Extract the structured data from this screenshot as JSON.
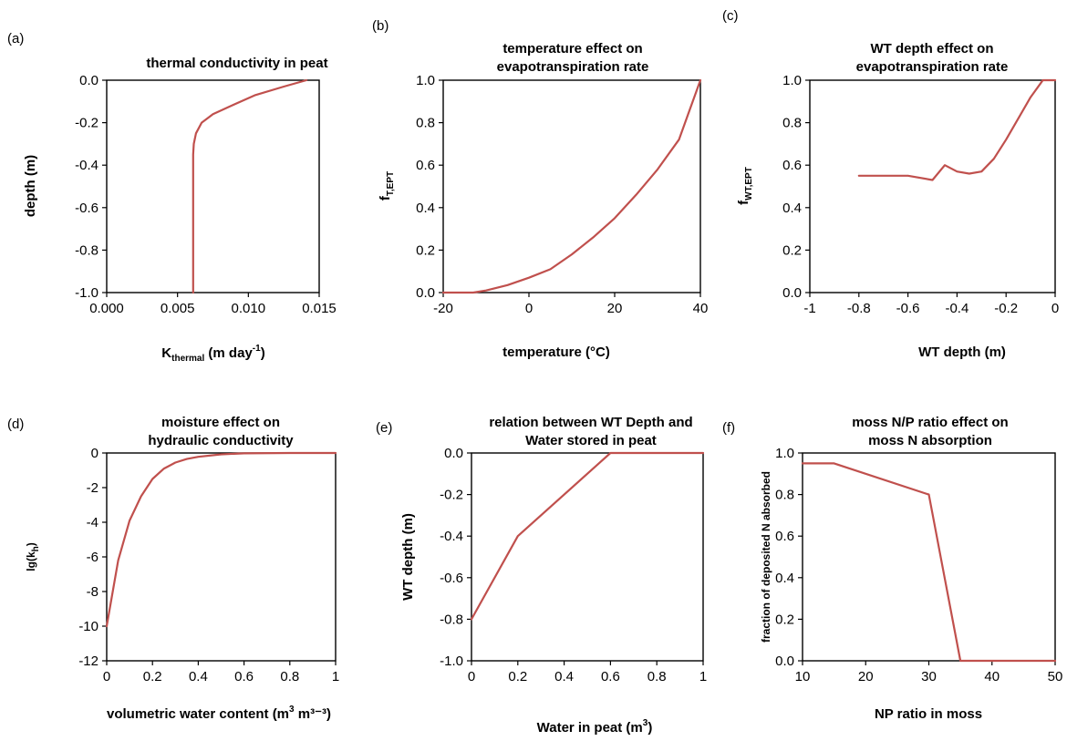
{
  "colors": {
    "line": "#c0504d",
    "axis": "#000000",
    "background": "#ffffff"
  },
  "chart_data": [
    {
      "id": "a",
      "panel_label": "(a)",
      "type": "line",
      "title_lines": [
        "thermal conductivity in peat"
      ],
      "xlabel": {
        "base": "K",
        "sub": "thermal",
        "rest": " (m day",
        "sup": "-1",
        "tail": ")"
      },
      "ylabel": {
        "base": "depth (m)",
        "sub": "",
        "rest": "",
        "sup": "",
        "tail": ""
      },
      "xlim": [
        0,
        0.015
      ],
      "ylim": [
        -1,
        0
      ],
      "xticks": [
        0,
        0.005,
        0.01,
        0.015
      ],
      "xtick_labels": [
        "0.000",
        "0.005",
        "0.010",
        "0.015"
      ],
      "yticks": [
        0,
        -0.2,
        -0.4,
        -0.6,
        -0.8,
        -1.0
      ],
      "ytick_labels": [
        "0.0",
        "-0.2",
        "-0.4",
        "-0.6",
        "-0.8",
        "-1.0"
      ],
      "grid": false,
      "series": [
        {
          "x": [
            0.0141,
            0.0125,
            0.0105,
            0.0088,
            0.0075,
            0.0067,
            0.0063,
            0.00615,
            0.0061,
            0.0061,
            0.0061,
            0.0061
          ],
          "y": [
            0,
            -0.03,
            -0.07,
            -0.12,
            -0.16,
            -0.2,
            -0.25,
            -0.3,
            -0.35,
            -0.5,
            -0.8,
            -1.0
          ]
        }
      ]
    },
    {
      "id": "b",
      "panel_label": "(b)",
      "type": "line",
      "title_lines": [
        "temperature effect on",
        "evapotranspiration  rate"
      ],
      "xlabel": {
        "base": "temperature (°C)",
        "sub": "",
        "rest": "",
        "sup": "",
        "tail": ""
      },
      "ylabel": {
        "base": "f",
        "sub": "T,EPT",
        "rest": "",
        "sup": "",
        "tail": ""
      },
      "xlim": [
        -20,
        40
      ],
      "ylim": [
        0,
        1
      ],
      "xticks": [
        -20,
        0,
        20,
        40
      ],
      "xtick_labels": [
        "-20",
        "0",
        "20",
        "40"
      ],
      "yticks": [
        0,
        0.2,
        0.4,
        0.6,
        0.8,
        1.0
      ],
      "ytick_labels": [
        "0.0",
        "0.2",
        "0.4",
        "0.6",
        "0.8",
        "1.0"
      ],
      "grid": false,
      "series": [
        {
          "x": [
            -20,
            -13,
            -10,
            -5,
            0,
            5,
            10,
            15,
            20,
            25,
            30,
            35,
            40
          ],
          "y": [
            0,
            0,
            0.01,
            0.035,
            0.07,
            0.11,
            0.18,
            0.26,
            0.35,
            0.46,
            0.58,
            0.72,
            1.0
          ]
        }
      ]
    },
    {
      "id": "c",
      "panel_label": "(c)",
      "type": "line",
      "title_lines": [
        "WT depth effect on",
        "evapotranspiration  rate"
      ],
      "xlabel": {
        "base": "WT depth (m)",
        "sub": "",
        "rest": "",
        "sup": "",
        "tail": ""
      },
      "ylabel": {
        "base": "f",
        "sub": "WT,EPT",
        "rest": "",
        "sup": "",
        "tail": ""
      },
      "xlim": [
        -1,
        0
      ],
      "ylim": [
        0,
        1
      ],
      "xticks": [
        -1,
        -0.8,
        -0.6,
        -0.4,
        -0.2,
        0
      ],
      "xtick_labels": [
        "-1",
        "-0.8",
        "-0.6",
        "-0.4",
        "-0.2",
        "0"
      ],
      "yticks": [
        0,
        0.2,
        0.4,
        0.6,
        0.8,
        1.0
      ],
      "ytick_labels": [
        "0.0",
        "0.2",
        "0.4",
        "0.6",
        "0.8",
        "1.0"
      ],
      "grid": false,
      "series": [
        {
          "x": [
            -0.8,
            -0.6,
            -0.5,
            -0.45,
            -0.4,
            -0.35,
            -0.3,
            -0.25,
            -0.2,
            -0.1,
            -0.05,
            0
          ],
          "y": [
            0.55,
            0.55,
            0.53,
            0.6,
            0.57,
            0.56,
            0.57,
            0.63,
            0.72,
            0.92,
            1.0,
            1.0
          ]
        }
      ]
    },
    {
      "id": "d",
      "panel_label": "(d)",
      "type": "line",
      "title_lines": [
        "moisture effect on",
        "hydraulic conductivity"
      ],
      "xlabel": {
        "base": "volumetric water content (m",
        "sub": "",
        "rest": "",
        "sup": "3",
        "tail": " m³⁻³)"
      },
      "ylabel": {
        "base": "lg(k",
        "sub": "h",
        "rest": ")",
        "sup": "",
        "tail": ""
      },
      "xlim": [
        0,
        1
      ],
      "ylim": [
        -12,
        0
      ],
      "xticks": [
        0,
        0.2,
        0.4,
        0.6,
        0.8,
        1
      ],
      "xtick_labels": [
        "0",
        "0.2",
        "0.4",
        "0.6",
        "0.8",
        "1"
      ],
      "yticks": [
        0,
        -2,
        -4,
        -6,
        -8,
        -10,
        -12
      ],
      "ytick_labels": [
        "0",
        "-2",
        "-4",
        "-6",
        "-8",
        "-10",
        "-12"
      ],
      "grid": false,
      "series": [
        {
          "x": [
            0,
            0.05,
            0.1,
            0.15,
            0.2,
            0.25,
            0.3,
            0.35,
            0.4,
            0.5,
            0.6,
            0.8,
            1.0
          ],
          "y": [
            -10,
            -6.2,
            -3.9,
            -2.5,
            -1.5,
            -0.9,
            -0.55,
            -0.35,
            -0.22,
            -0.08,
            -0.02,
            0,
            0
          ]
        }
      ]
    },
    {
      "id": "e",
      "panel_label": "(e)",
      "type": "line",
      "title_lines": [
        "relation between WT Depth and",
        "Water stored in peat"
      ],
      "xlabel": {
        "base": "Water in peat (m",
        "sub": "",
        "rest": "",
        "sup": "3",
        "tail": ")"
      },
      "ylabel": {
        "base": "WT depth (m)",
        "sub": "",
        "rest": "",
        "sup": "",
        "tail": ""
      },
      "xlim": [
        0,
        1
      ],
      "ylim": [
        -1,
        0
      ],
      "xticks": [
        0,
        0.2,
        0.4,
        0.6,
        0.8,
        1
      ],
      "xtick_labels": [
        "0",
        "0.2",
        "0.4",
        "0.6",
        "0.8",
        "1"
      ],
      "yticks": [
        0,
        -0.2,
        -0.4,
        -0.6,
        -0.8,
        -1.0
      ],
      "ytick_labels": [
        "0.0",
        "-0.2",
        "-0.4",
        "-0.6",
        "-0.8",
        "-1.0"
      ],
      "grid": false,
      "series": [
        {
          "x": [
            0,
            0.2,
            0.6,
            1.0
          ],
          "y": [
            -0.8,
            -0.4,
            0,
            0
          ]
        }
      ]
    },
    {
      "id": "f",
      "panel_label": "(f)",
      "type": "line",
      "title_lines": [
        "moss N/P ratio effect on",
        "moss N absorption"
      ],
      "xlabel": {
        "base": "NP ratio in moss",
        "sub": "",
        "rest": "",
        "sup": "",
        "tail": ""
      },
      "ylabel": {
        "base": "fraction of deposited N absorbed",
        "sub": "",
        "rest": "",
        "sup": "",
        "tail": ""
      },
      "xlim": [
        10,
        50
      ],
      "ylim": [
        0,
        1
      ],
      "xticks": [
        10,
        20,
        30,
        40,
        50
      ],
      "xtick_labels": [
        "10",
        "20",
        "30",
        "40",
        "50"
      ],
      "yticks": [
        0,
        0.2,
        0.4,
        0.6,
        0.8,
        1.0
      ],
      "ytick_labels": [
        "0.0",
        "0.2",
        "0.4",
        "0.6",
        "0.8",
        "1.0"
      ],
      "grid": false,
      "series": [
        {
          "x": [
            10,
            15,
            30,
            35,
            50
          ],
          "y": [
            0.95,
            0.95,
            0.8,
            0,
            0
          ]
        }
      ]
    }
  ]
}
